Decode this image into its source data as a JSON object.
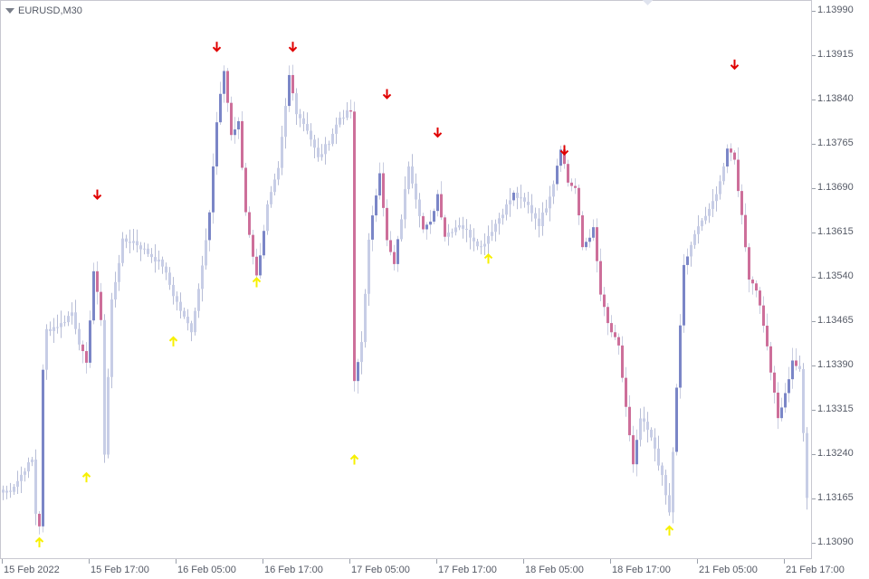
{
  "window": {
    "symbol_label": "EURUSD,M30"
  },
  "price_axis": {
    "labels": [
      "1.13990",
      "1.13915",
      "1.13840",
      "1.13765",
      "1.13690",
      "1.13615",
      "1.13540",
      "1.13465",
      "1.13390",
      "1.13315",
      "1.13240",
      "1.13165",
      "1.13090"
    ]
  },
  "time_axis": {
    "labels": [
      "15 Feb 2022",
      "15 Feb 17:00",
      "16 Feb 05:00",
      "16 Feb 17:00",
      "17 Feb 05:00",
      "17 Feb 17:00",
      "18 Feb 05:00",
      "18 Feb 17:00",
      "21 Feb 05:00",
      "21 Feb 17:00"
    ]
  },
  "colors": {
    "bull_body": "#7b86c7",
    "bear_body": "#cd6f9a",
    "faded": "#c7cde6",
    "wick": "#b7bdd6",
    "up_arrow": "#f7f000",
    "down_arrow": "#e00000"
  },
  "chart_data": {
    "type": "candlestick",
    "symbol": "EURUSD",
    "timeframe": "M30",
    "ylim": [
      1.13075,
      1.14005
    ],
    "anchor_points": [
      [
        0,
        1.13175
      ],
      [
        2,
        1.1318
      ],
      [
        4,
        1.13195
      ],
      [
        6,
        1.13215
      ],
      [
        8,
        1.1323
      ],
      [
        9,
        1.1314
      ],
      [
        10,
        1.1312
      ],
      [
        11,
        1.1338
      ],
      [
        12,
        1.1345
      ],
      [
        16,
        1.1346
      ],
      [
        19,
        1.1348
      ],
      [
        21,
        1.1343
      ],
      [
        23,
        1.1339
      ],
      [
        25,
        1.1355
      ],
      [
        27,
        1.1347
      ],
      [
        28,
        1.1324
      ],
      [
        30,
        1.135
      ],
      [
        33,
        1.136
      ],
      [
        36,
        1.136
      ],
      [
        40,
        1.1358
      ],
      [
        44,
        1.1356
      ],
      [
        47,
        1.1351
      ],
      [
        50,
        1.1347
      ],
      [
        52,
        1.1345
      ],
      [
        54,
        1.1352
      ],
      [
        57,
        1.1365
      ],
      [
        59,
        1.138
      ],
      [
        61,
        1.1389
      ],
      [
        63,
        1.1378
      ],
      [
        65,
        1.138
      ],
      [
        67,
        1.1365
      ],
      [
        70,
        1.1354
      ],
      [
        73,
        1.1366
      ],
      [
        76,
        1.1372
      ],
      [
        79,
        1.1388
      ],
      [
        81,
        1.1382
      ],
      [
        84,
        1.1379
      ],
      [
        87,
        1.1374
      ],
      [
        90,
        1.1377
      ],
      [
        93,
        1.1381
      ],
      [
        96,
        1.1382
      ],
      [
        97,
        1.1336
      ],
      [
        99,
        1.1343
      ],
      [
        101,
        1.136
      ],
      [
        104,
        1.1372
      ],
      [
        106,
        1.136
      ],
      [
        108,
        1.1356
      ],
      [
        110,
        1.1364
      ],
      [
        112,
        1.1373
      ],
      [
        116,
        1.1362
      ],
      [
        118,
        1.1363
      ],
      [
        120,
        1.1368
      ],
      [
        122,
        1.1361
      ],
      [
        126,
        1.1363
      ],
      [
        132,
        1.1359
      ],
      [
        135,
        1.1362
      ],
      [
        138,
        1.1365
      ],
      [
        141,
        1.1368
      ],
      [
        145,
        1.1366
      ],
      [
        148,
        1.1363
      ],
      [
        150,
        1.1366
      ],
      [
        152,
        1.137
      ],
      [
        154,
        1.1376
      ],
      [
        156,
        1.137
      ],
      [
        158,
        1.1369
      ],
      [
        160,
        1.1359
      ],
      [
        163,
        1.1362
      ],
      [
        165,
        1.1351
      ],
      [
        167,
        1.1346
      ],
      [
        170,
        1.1342
      ],
      [
        172,
        1.1332
      ],
      [
        174,
        1.1322
      ],
      [
        176,
        1.133
      ],
      [
        178,
        1.1328
      ],
      [
        180,
        1.1325
      ],
      [
        182,
        1.132
      ],
      [
        184,
        1.1314
      ],
      [
        186,
        1.1335
      ],
      [
        188,
        1.1356
      ],
      [
        190,
        1.1359
      ],
      [
        192,
        1.1363
      ],
      [
        195,
        1.1365
      ],
      [
        198,
        1.137
      ],
      [
        200,
        1.1376
      ],
      [
        202,
        1.1374
      ],
      [
        204,
        1.1364
      ],
      [
        206,
        1.1354
      ],
      [
        208,
        1.1352
      ],
      [
        210,
        1.1346
      ],
      [
        212,
        1.1338
      ],
      [
        214,
        1.133
      ],
      [
        216,
        1.1334
      ],
      [
        218,
        1.134
      ],
      [
        220,
        1.1338
      ],
      [
        222,
        1.1317
      ]
    ],
    "up_arrow_signals": [
      {
        "time": "15 Feb 02:30",
        "price": 1.1309
      },
      {
        "time": "15 Feb 13:30",
        "price": 1.132
      },
      {
        "time": "16 Feb 00:30",
        "price": 1.1343
      },
      {
        "time": "16 Feb 11:00",
        "price": 1.1353
      },
      {
        "time": "17 Feb 05:00",
        "price": 1.1323
      },
      {
        "time": "17 Feb 22:30",
        "price": 1.1357
      },
      {
        "time": "21 Feb 00:00",
        "price": 1.1311
      }
    ],
    "down_arrow_signals": [
      {
        "time": "15 Feb 15:30",
        "price": 1.1368
      },
      {
        "time": "16 Feb 07:00",
        "price": 1.1393
      },
      {
        "time": "16 Feb 13:00",
        "price": 1.1393
      },
      {
        "time": "17 Feb 08:30",
        "price": 1.1385
      },
      {
        "time": "17 Feb 15:00",
        "price": 1.13785
      },
      {
        "time": "18 Feb 08:00",
        "price": 1.13755
      },
      {
        "time": "21 Feb 08:00",
        "price": 1.139
      }
    ],
    "grid": false
  }
}
